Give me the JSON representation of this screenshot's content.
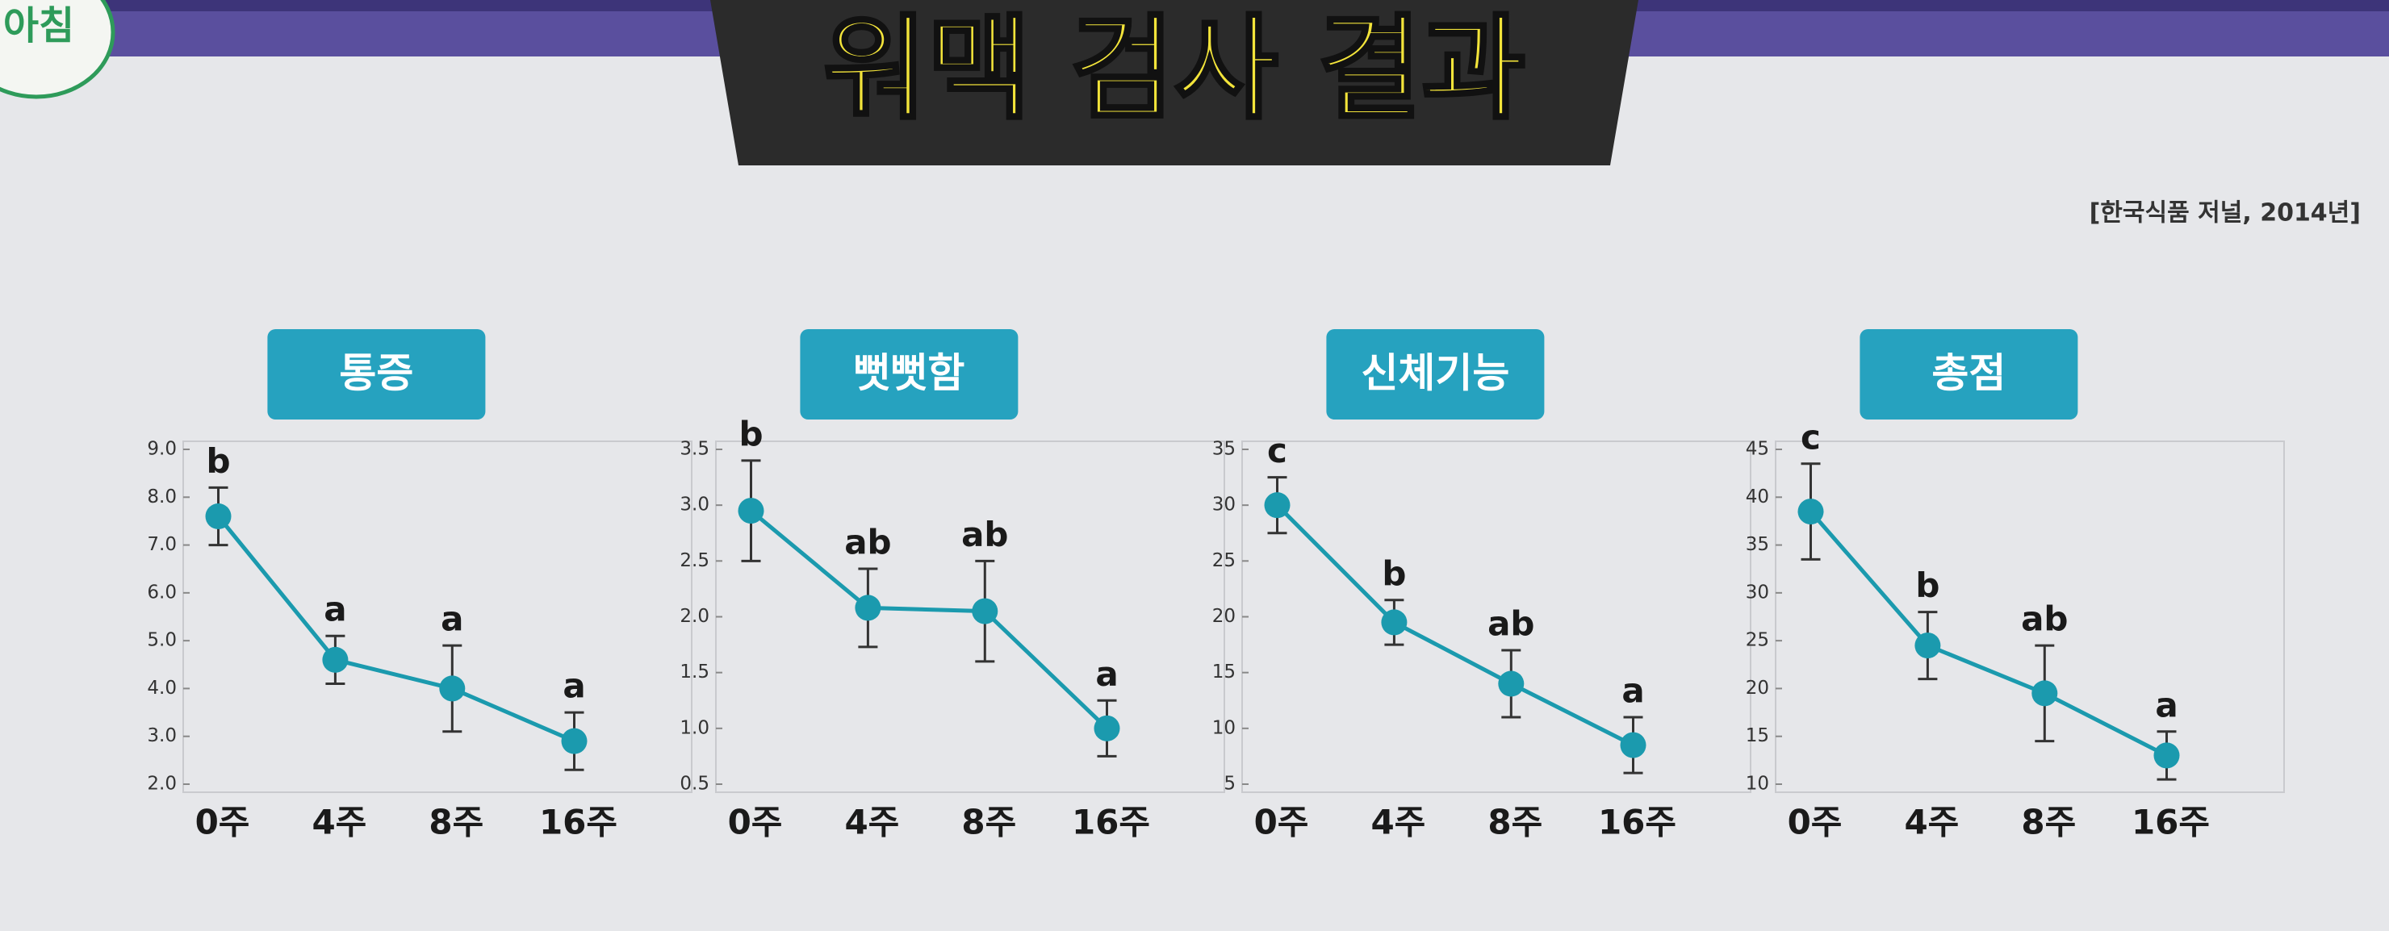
{
  "header": {
    "title": "워맥 검사 결과",
    "source": "[한국식품 저널, 2014년]",
    "logo": "아침"
  },
  "chart_data": [
    {
      "type": "line",
      "title": "통증",
      "categories": [
        "0주",
        "4주",
        "8주",
        "16주"
      ],
      "values": [
        7.6,
        4.6,
        4.0,
        2.9
      ],
      "errors": [
        0.6,
        0.5,
        0.9,
        0.6
      ],
      "annotations": [
        "b",
        "a",
        "a",
        "a"
      ],
      "color": "#1b9aae",
      "ylim": [
        2,
        9
      ],
      "yticks": [
        {
          "value": 2,
          "label": "2.0"
        },
        {
          "value": 3,
          "label": "3.0"
        },
        {
          "value": 4,
          "label": "4.0"
        },
        {
          "value": 5,
          "label": "5.0"
        },
        {
          "value": 6,
          "label": "6.0"
        },
        {
          "value": 7,
          "label": "7.0"
        },
        {
          "value": 8,
          "label": "8.0"
        },
        {
          "value": 9,
          "label": "9.0"
        }
      ]
    },
    {
      "type": "line",
      "title": "뻣뻣함",
      "categories": [
        "0주",
        "4주",
        "8주",
        "16주"
      ],
      "values": [
        2.95,
        2.08,
        2.05,
        1.0
      ],
      "errors": [
        0.45,
        0.35,
        0.45,
        0.25
      ],
      "annotations": [
        "b",
        "ab",
        "ab",
        "a"
      ],
      "color": "#1b9aae",
      "ylim": [
        0.5,
        3.5
      ],
      "yticks": [
        0.5,
        {
          "value": 1,
          "label": "1.0"
        },
        1.5,
        {
          "value": 2,
          "label": "2.0"
        },
        2.5,
        {
          "value": 3,
          "label": "3.0"
        },
        3.5
      ]
    },
    {
      "type": "line",
      "title": "신체기능",
      "categories": [
        "0주",
        "4주",
        "8주",
        "16주"
      ],
      "values": [
        30,
        19.5,
        14,
        8.5
      ],
      "errors": [
        2.5,
        2,
        3,
        2.5
      ],
      "annotations": [
        "c",
        "b",
        "ab",
        "a"
      ],
      "color": "#1b9aae",
      "ylim": [
        5,
        35
      ],
      "yticks": [
        5,
        10,
        15,
        20,
        25,
        30,
        35
      ]
    },
    {
      "type": "line",
      "title": "총점",
      "categories": [
        "0주",
        "4주",
        "8주",
        "16주"
      ],
      "values": [
        38.5,
        24.5,
        19.5,
        13
      ],
      "errors": [
        5,
        3.5,
        5,
        2.5
      ],
      "annotations": [
        "c",
        "b",
        "ab",
        "a"
      ],
      "color": "#1b9aae",
      "ylim": [
        10,
        45
      ],
      "yticks": [
        10,
        15,
        20,
        25,
        30,
        35,
        40,
        45
      ]
    }
  ]
}
